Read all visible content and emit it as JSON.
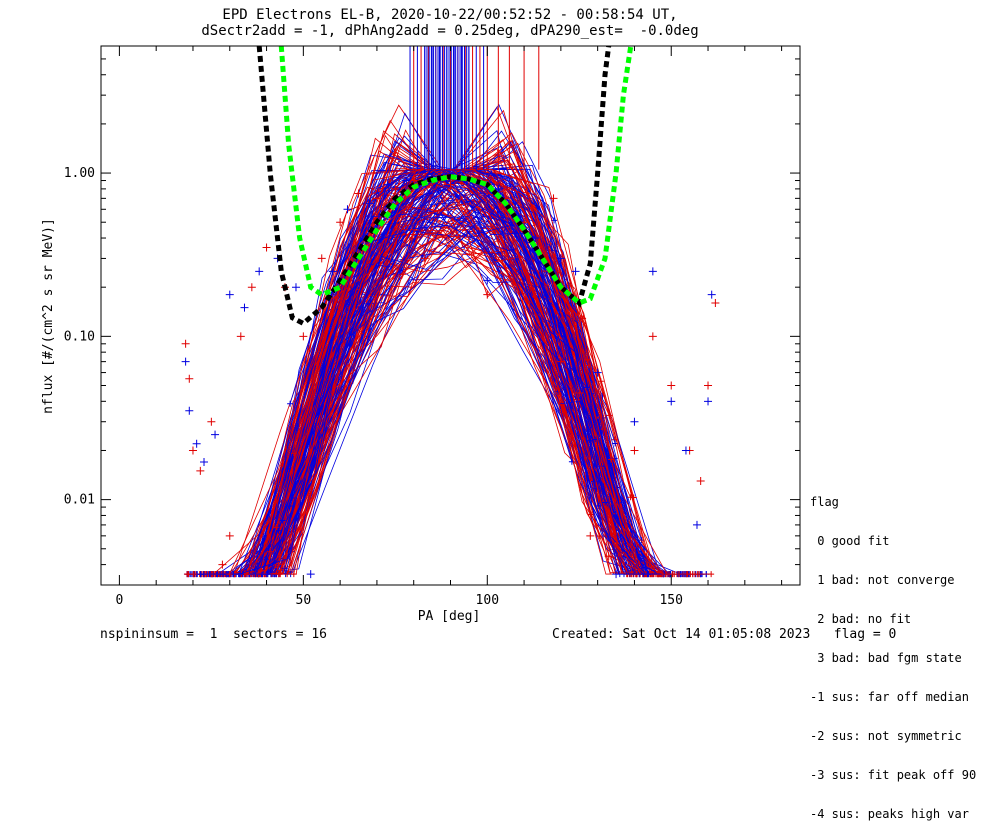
{
  "header": {
    "title_line1": "EPD Electrons EL-B, 2020-10-22/00:52:52 - 00:58:54 UT,",
    "title_line2": "dSectr2add = -1, dPhAng2add = 0.25deg, dPA290_est=  -0.0deg"
  },
  "chart_data": {
    "type": "line",
    "xlabel": "PA [deg]",
    "ylabel": "nflux [#/(cm^2 s sr MeV)]",
    "xlim": [
      -5,
      185
    ],
    "ylim": [
      0.003,
      6.0
    ],
    "yscale": "log",
    "x_ticks": [
      "0",
      "50",
      "100",
      "150"
    ],
    "x_tick_values": [
      0,
      50,
      100,
      150
    ],
    "y_ticks": [
      "0.01",
      "0.10",
      "1.00"
    ],
    "y_tick_values": [
      0.01,
      0.1,
      1.0
    ],
    "colors": {
      "series_a": "#e00000",
      "series_b": "#0000e0",
      "fit_black": "#000000",
      "fit_green": "#00ff00"
    },
    "fit_curves": [
      {
        "color": "#000000",
        "x": [
          38,
          41,
          44,
          47,
          50,
          55,
          60,
          65,
          70,
          75,
          80,
          85,
          90,
          95,
          100,
          105,
          110,
          115,
          120,
          125,
          128,
          130,
          132,
          133
        ],
        "y": [
          6.0,
          1.0,
          0.25,
          0.13,
          0.12,
          0.15,
          0.22,
          0.33,
          0.5,
          0.7,
          0.85,
          0.92,
          0.95,
          0.92,
          0.85,
          0.65,
          0.45,
          0.3,
          0.2,
          0.16,
          0.28,
          1.0,
          4.0,
          6.0
        ]
      },
      {
        "color": "#00ff00",
        "x": [
          44,
          46,
          49,
          52,
          55,
          60,
          65,
          70,
          75,
          80,
          85,
          90,
          95,
          100,
          105,
          110,
          115,
          120,
          125,
          128,
          132,
          135,
          137,
          139
        ],
        "y": [
          6.0,
          1.5,
          0.4,
          0.2,
          0.18,
          0.2,
          0.3,
          0.45,
          0.65,
          0.82,
          0.9,
          0.95,
          0.92,
          0.85,
          0.65,
          0.45,
          0.3,
          0.2,
          0.16,
          0.17,
          0.3,
          1.0,
          3.0,
          6.0
        ]
      }
    ],
    "spikes": {
      "red_x": [
        80,
        82,
        84,
        86,
        88,
        90,
        92,
        94,
        96,
        98,
        100,
        103,
        106,
        110,
        114
      ],
      "blue_x": [
        79,
        81,
        83,
        85,
        87,
        89,
        91,
        93,
        95,
        97,
        99
      ],
      "y_low": 1.05
    },
    "sample_points": {
      "red": [
        [
          18,
          0.09
        ],
        [
          19,
          0.055
        ],
        [
          20,
          0.02
        ],
        [
          22,
          0.015
        ],
        [
          25,
          0.03
        ],
        [
          28,
          0.004
        ],
        [
          30,
          0.006
        ],
        [
          33,
          0.1
        ],
        [
          36,
          0.2
        ],
        [
          40,
          0.35
        ],
        [
          45,
          0.2
        ],
        [
          50,
          0.1
        ],
        [
          55,
          0.3
        ],
        [
          60,
          0.5
        ],
        [
          65,
          0.75
        ],
        [
          70,
          0.7
        ],
        [
          75,
          0.8
        ],
        [
          80,
          0.9
        ],
        [
          83,
          0.3
        ],
        [
          90,
          0.85
        ],
        [
          95,
          0.9
        ],
        [
          100,
          0.18
        ],
        [
          105,
          0.7
        ],
        [
          110,
          0.5
        ],
        [
          115,
          0.3
        ],
        [
          118,
          0.7
        ],
        [
          120,
          0.07
        ],
        [
          125,
          0.045
        ],
        [
          128,
          0.006
        ],
        [
          133,
          0.0045
        ],
        [
          140,
          0.02
        ],
        [
          145,
          0.1
        ],
        [
          150,
          0.05
        ],
        [
          155,
          0.02
        ],
        [
          158,
          0.013
        ],
        [
          160,
          0.05
        ],
        [
          162,
          0.16
        ]
      ],
      "blue": [
        [
          18,
          0.07
        ],
        [
          19,
          0.035
        ],
        [
          21,
          0.022
        ],
        [
          23,
          0.017
        ],
        [
          26,
          0.025
        ],
        [
          30,
          0.18
        ],
        [
          34,
          0.15
        ],
        [
          38,
          0.25
        ],
        [
          43,
          0.3
        ],
        [
          48,
          0.2
        ],
        [
          52,
          0.0035
        ],
        [
          58,
          0.25
        ],
        [
          62,
          0.6
        ],
        [
          68,
          0.65
        ],
        [
          73,
          0.85
        ],
        [
          78,
          0.9
        ],
        [
          85,
          0.95
        ],
        [
          92,
          0.95
        ],
        [
          97,
          1.1
        ],
        [
          100,
          0.22
        ],
        [
          103,
          0.8
        ],
        [
          108,
          0.55
        ],
        [
          113,
          0.4
        ],
        [
          120,
          0.3
        ],
        [
          124,
          0.25
        ],
        [
          130,
          0.06
        ],
        [
          135,
          0.0035
        ],
        [
          140,
          0.03
        ],
        [
          145,
          0.25
        ],
        [
          150,
          0.04
        ],
        [
          154,
          0.02
        ],
        [
          157,
          0.007
        ],
        [
          160,
          0.04
        ],
        [
          161,
          0.18
        ]
      ]
    }
  },
  "legend": {
    "items": [
      "flag",
      " 0 good fit",
      " 1 bad: not converge",
      " 2 bad: no fit",
      " 3 bad: bad fgm state",
      "-1 sus: far off median",
      "-2 sus: not symmetric",
      "-3 sus: fit peak off 90",
      "-4 sus: peaks high var"
    ]
  },
  "footer": {
    "left": "nspininsum =  1  sectors = 16",
    "right": "Created: Sat Oct 14 01:05:08 2023   flag = 0"
  }
}
